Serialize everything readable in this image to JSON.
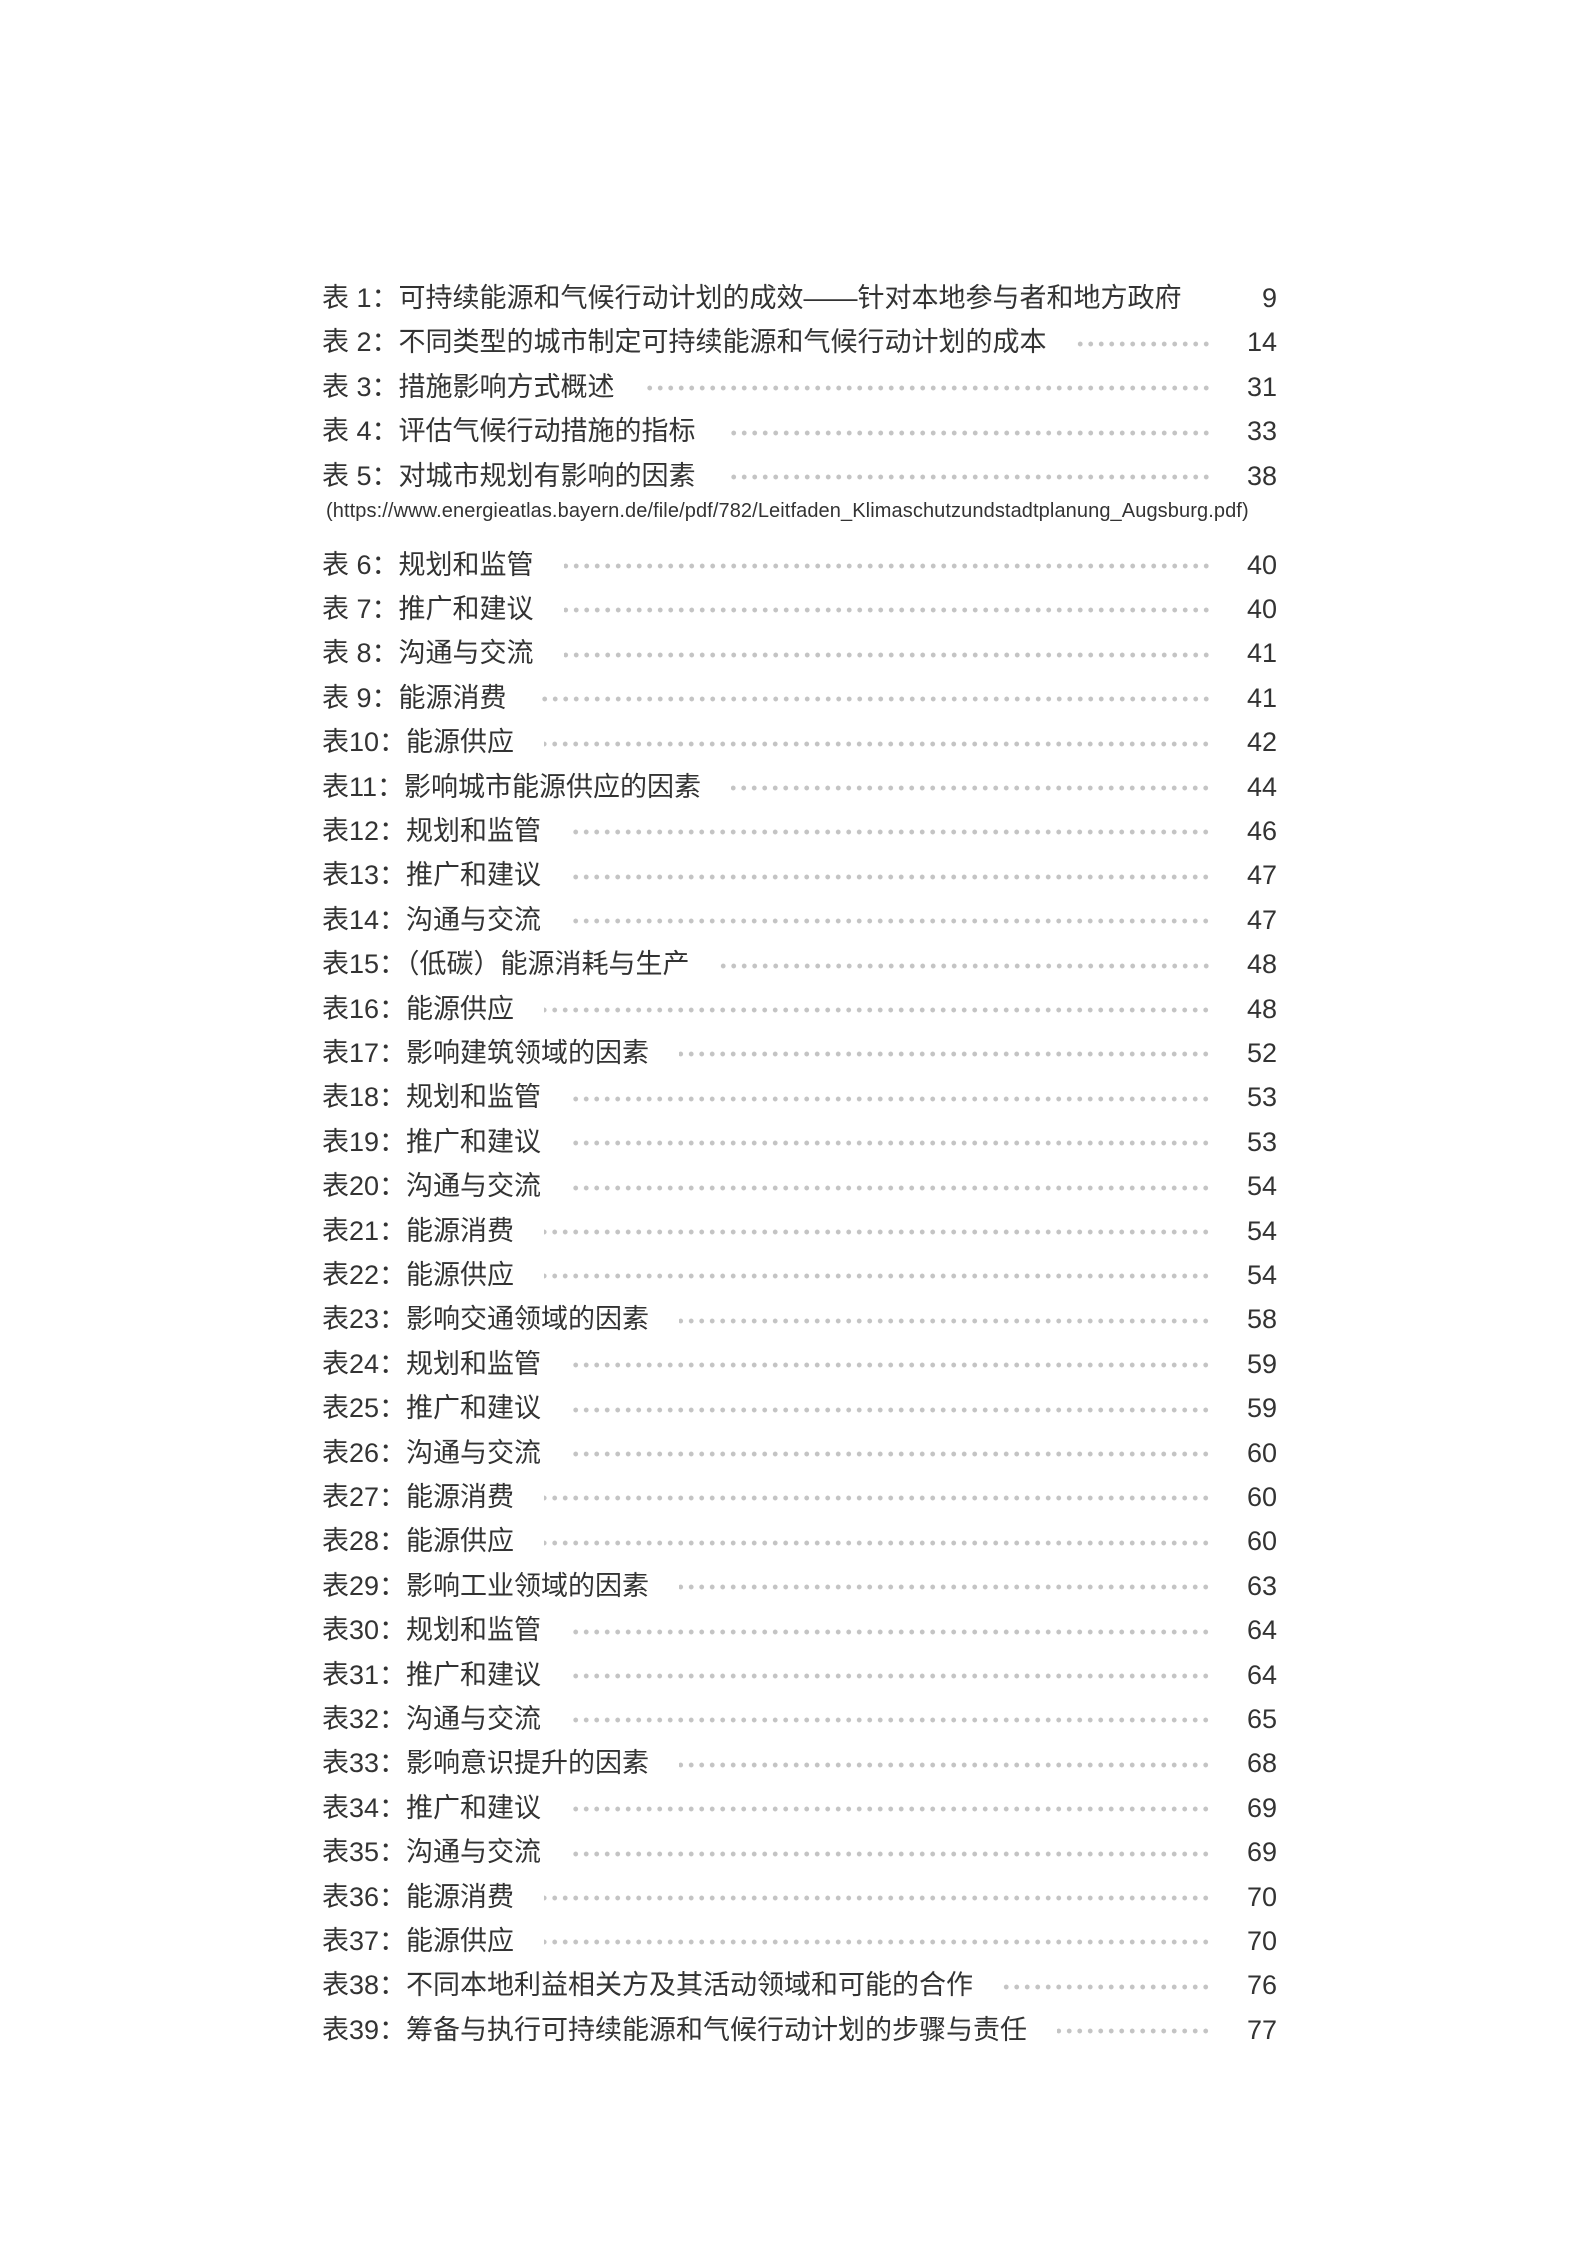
{
  "toc": {
    "items": [
      {
        "label": "表 1：可持续能源和气候行动计划的成效——针对本地参与者和地方政府",
        "page": "9"
      },
      {
        "label": "表 2：不同类型的城市制定可持续能源和气候行动计划的成本",
        "page": "14"
      },
      {
        "label": "表 3：措施影响方式概述",
        "page": "31"
      },
      {
        "label": "表 4：评估气候行动措施的指标",
        "page": "33"
      },
      {
        "label": "表 5：对城市规划有影响的因素",
        "page": "38"
      },
      {
        "label": "表 6：规划和监管",
        "page": "40"
      },
      {
        "label": "表 7：推广和建议",
        "page": "40"
      },
      {
        "label": "表 8：沟通与交流",
        "page": "41"
      },
      {
        "label": "表 9：能源消费",
        "page": "41"
      },
      {
        "label": "表10：能源供应",
        "page": "42"
      },
      {
        "label": "表11：影响城市能源供应的因素",
        "page": "44"
      },
      {
        "label": "表12：规划和监管",
        "page": "46"
      },
      {
        "label": "表13：推广和建议",
        "page": "47"
      },
      {
        "label": "表14：沟通与交流",
        "page": "47"
      },
      {
        "label": "表15：（低碳）能源消耗与生产",
        "page": "48"
      },
      {
        "label": "表16：能源供应",
        "page": "48"
      },
      {
        "label": "表17：影响建筑领域的因素",
        "page": "52"
      },
      {
        "label": "表18：规划和监管",
        "page": "53"
      },
      {
        "label": "表19：推广和建议",
        "page": "53"
      },
      {
        "label": "表20：沟通与交流",
        "page": "54"
      },
      {
        "label": "表21：能源消费",
        "page": "54"
      },
      {
        "label": "表22：能源供应",
        "page": "54"
      },
      {
        "label": "表23：影响交通领域的因素",
        "page": "58"
      },
      {
        "label": "表24：规划和监管",
        "page": "59"
      },
      {
        "label": "表25：推广和建议",
        "page": "59"
      },
      {
        "label": "表26：沟通与交流",
        "page": "60"
      },
      {
        "label": "表27：能源消费",
        "page": "60"
      },
      {
        "label": "表28：能源供应",
        "page": "60"
      },
      {
        "label": "表29：影响工业领域的因素",
        "page": "63"
      },
      {
        "label": "表30：规划和监管",
        "page": "64"
      },
      {
        "label": "表31：推广和建议",
        "page": "64"
      },
      {
        "label": "表32：沟通与交流",
        "page": "65"
      },
      {
        "label": "表33：影响意识提升的因素",
        "page": "68"
      },
      {
        "label": "表34：推广和建议",
        "page": "69"
      },
      {
        "label": "表35：沟通与交流",
        "page": "69"
      },
      {
        "label": "表36：能源消费",
        "page": "70"
      },
      {
        "label": "表37：能源供应",
        "page": "70"
      },
      {
        "label": "表38：不同本地利益相关方及其活动领域和可能的合作",
        "page": "76"
      },
      {
        "label": "表39：筹备与执行可持续能源和气候行动计划的步骤与责任",
        "page": "77"
      }
    ],
    "source_url": "(https://www.energieatlas.bayern.de/file/pdf/782/Leitfaden_Klimaschutzundstadtplanung_Augsburg.pdf)"
  }
}
